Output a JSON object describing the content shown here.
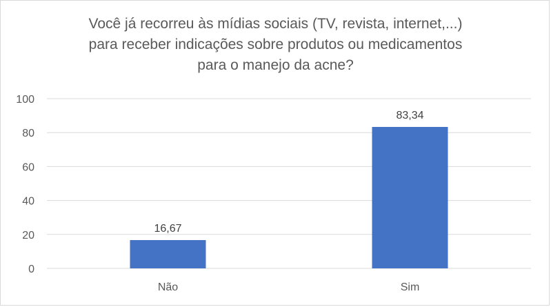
{
  "chart_data": {
    "type": "bar",
    "title_lines": [
      "Você já recorreu às mídias sociais (TV, revista, internet,...)",
      "para receber indicações sobre produtos ou medicamentos",
      "para o manejo da acne?"
    ],
    "categories": [
      "Não",
      "Sim"
    ],
    "values": [
      16.67,
      83.34
    ],
    "data_labels": [
      "16,67",
      "83,34"
    ],
    "ylim": [
      0,
      100
    ],
    "yticks": [
      0,
      20,
      40,
      60,
      80,
      100
    ],
    "grid": true,
    "legend": "none",
    "bar_color": "#4472c4",
    "grid_color": "#d9d9d9"
  }
}
